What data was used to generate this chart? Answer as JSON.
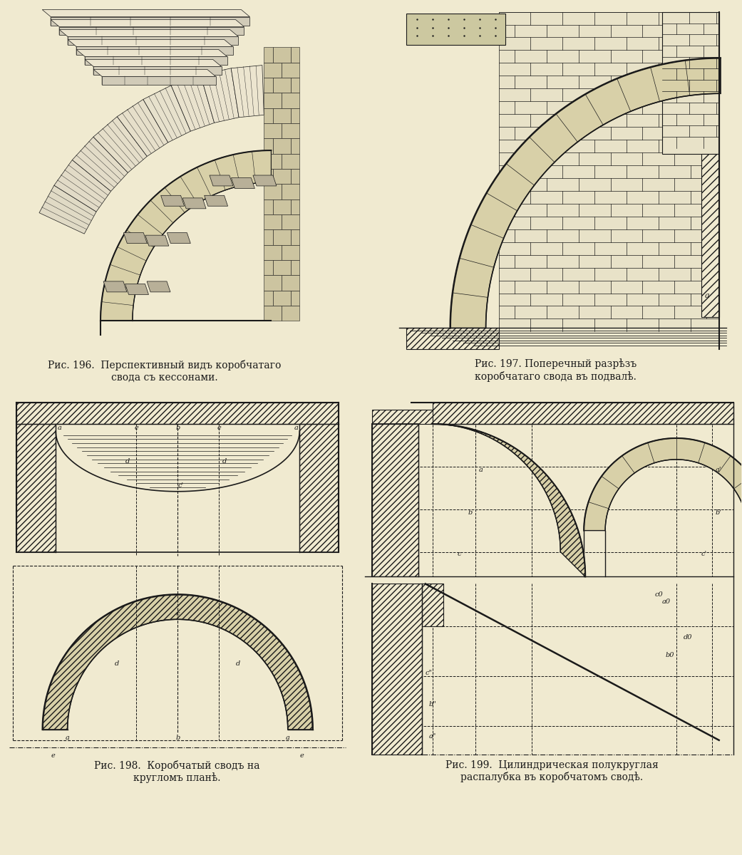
{
  "bg_color": "#f0ead0",
  "line_color": "#1a1a1a",
  "caption_196": "Рис. 196.  Перспективный видъ коробчатаго\nсвода съ кессонами.",
  "caption_197": "Рис. 197. Поперечный разрѣзъ\nкоробчатаго свода въ подвалѣ.",
  "caption_198": "Рис. 198.  Коробчатый сводъ на\nкругломъ планѣ.",
  "caption_199": "Рис. 199.  Цилиндрическая полукруглая\nраспалубка въ коробчатомъ сводѣ."
}
